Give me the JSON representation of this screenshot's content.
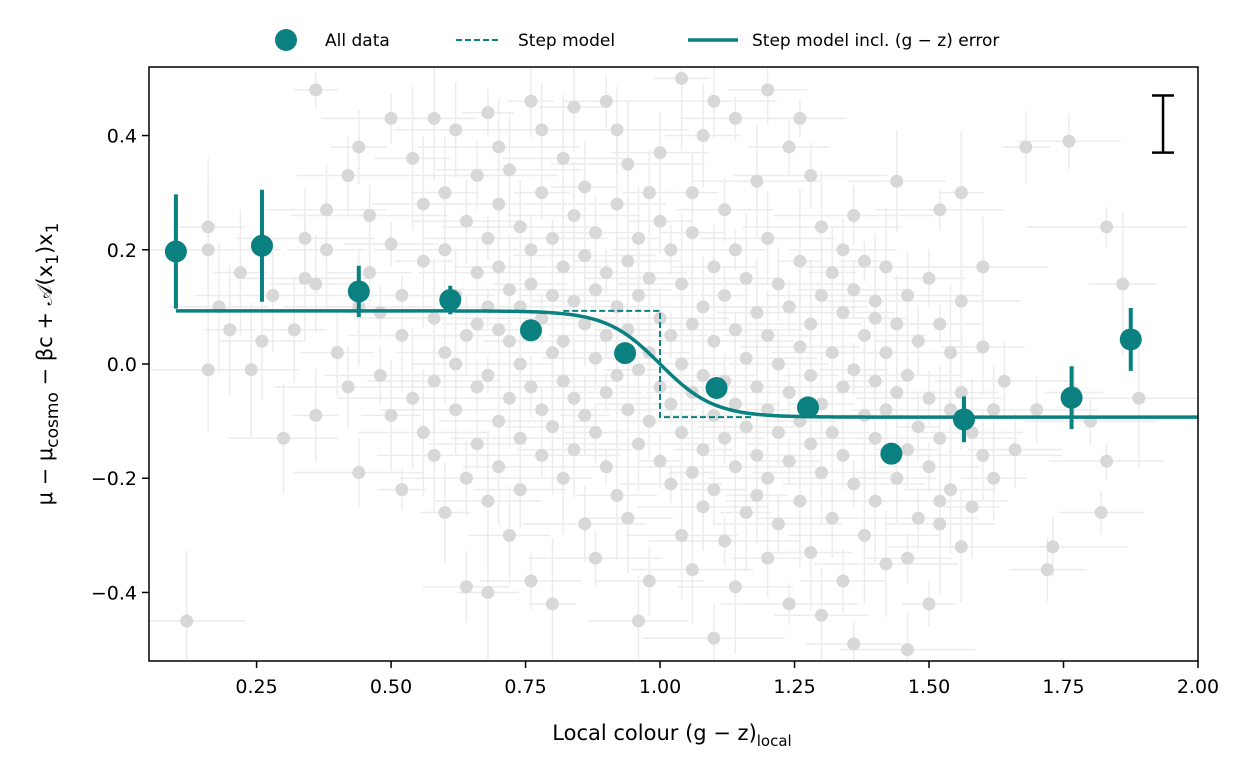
{
  "chart_data": {
    "type": "scatter",
    "xlabel": "Local colour (g − z)",
    "xlabel_sub": "local",
    "ylabel_parts": [
      "μ − μ",
      "cosmo",
      " − βc + 𝒜(x",
      "1",
      ")x",
      "1"
    ],
    "xlim": [
      0.05,
      2.0
    ],
    "ylim": [
      -0.52,
      0.52
    ],
    "x_ticks": [
      0.25,
      0.5,
      0.75,
      1.0,
      1.25,
      1.5,
      1.75,
      2.0
    ],
    "x_tick_labels": [
      "0.25",
      "0.50",
      "0.75",
      "1.00",
      "1.25",
      "1.50",
      "1.75",
      "2.00"
    ],
    "y_ticks": [
      -0.4,
      -0.2,
      0.0,
      0.2,
      0.4
    ],
    "y_tick_labels": [
      "−0.4",
      "−0.2",
      "0.0",
      "0.2",
      "0.4"
    ],
    "grid": false,
    "legend": {
      "placement": "top-center, outside above plot",
      "entries": [
        {
          "label": "All data",
          "marker": "circle"
        },
        {
          "label": "Step model",
          "marker": "dashed-line"
        },
        {
          "label": "Step model incl. (g − z) error",
          "marker": "solid-line"
        }
      ]
    },
    "colors": {
      "binned": "#0a8080",
      "scatter": "#d8d8d8",
      "scatter_error": "#ececec",
      "typical_error_bar": "#000000"
    },
    "step_model": {
      "high_level": 0.093,
      "low_level": -0.093,
      "step_location": 1.0,
      "dashed_x_range": [
        0.82,
        1.17
      ],
      "smooth_width": 0.05
    },
    "typical_error_bar": {
      "x": 1.935,
      "y_low": 0.37,
      "y_high": 0.47
    },
    "binned_points": [
      {
        "x": 0.1,
        "y": 0.197,
        "err": 0.1
      },
      {
        "x": 0.26,
        "y": 0.207,
        "err": 0.098
      },
      {
        "x": 0.44,
        "y": 0.127,
        "err": 0.045
      },
      {
        "x": 0.61,
        "y": 0.112,
        "err": 0.025
      },
      {
        "x": 0.76,
        "y": 0.059,
        "err": 0.01
      },
      {
        "x": 0.935,
        "y": 0.019,
        "err": 0.01
      },
      {
        "x": 1.105,
        "y": -0.042,
        "err": 0.01
      },
      {
        "x": 1.275,
        "y": -0.076,
        "err": 0.012
      },
      {
        "x": 1.43,
        "y": -0.157,
        "err": 0.012
      },
      {
        "x": 1.565,
        "y": -0.097,
        "err": 0.04
      },
      {
        "x": 1.765,
        "y": -0.059,
        "err": 0.055
      },
      {
        "x": 1.875,
        "y": 0.043,
        "err": 0.055
      }
    ],
    "scatter_points": [
      [
        0.36,
        0.48
      ],
      [
        0.12,
        -0.45
      ],
      [
        0.16,
        0.24
      ],
      [
        0.16,
        0.2
      ],
      [
        0.18,
        0.1
      ],
      [
        0.22,
        0.16
      ],
      [
        0.16,
        -0.01
      ],
      [
        0.26,
        0.04
      ],
      [
        0.28,
        0.12
      ],
      [
        0.3,
        -0.13
      ],
      [
        0.32,
        0.06
      ],
      [
        0.34,
        0.22
      ],
      [
        0.36,
        0.14
      ],
      [
        0.36,
        -0.09
      ],
      [
        0.38,
        0.27
      ],
      [
        0.4,
        0.02
      ],
      [
        0.42,
        -0.04
      ],
      [
        0.42,
        0.33
      ],
      [
        0.44,
        0.38
      ],
      [
        0.44,
        -0.19
      ],
      [
        0.46,
        0.16
      ],
      [
        0.46,
        0.26
      ],
      [
        0.48,
        -0.02
      ],
      [
        0.48,
        0.09
      ],
      [
        0.5,
        0.43
      ],
      [
        0.5,
        0.21
      ],
      [
        0.52,
        -0.22
      ],
      [
        0.52,
        0.12
      ],
      [
        0.54,
        0.36
      ],
      [
        0.54,
        -0.06
      ],
      [
        0.56,
        0.28
      ],
      [
        0.56,
        0.18
      ],
      [
        0.56,
        -0.12
      ],
      [
        0.58,
        0.43
      ],
      [
        0.58,
        0.08
      ],
      [
        0.58,
        -0.16
      ],
      [
        0.6,
        0.3
      ],
      [
        0.6,
        0.2
      ],
      [
        0.6,
        0.02
      ],
      [
        0.6,
        -0.26
      ],
      [
        0.62,
        0.41
      ],
      [
        0.62,
        0.12
      ],
      [
        0.62,
        -0.08
      ],
      [
        0.64,
        0.25
      ],
      [
        0.64,
        0.05
      ],
      [
        0.64,
        -0.2
      ],
      [
        0.64,
        -0.39
      ],
      [
        0.66,
        0.33
      ],
      [
        0.66,
        0.16
      ],
      [
        0.66,
        0.07
      ],
      [
        0.66,
        -0.04
      ],
      [
        0.66,
        -0.14
      ],
      [
        0.68,
        0.44
      ],
      [
        0.68,
        0.22
      ],
      [
        0.68,
        0.1
      ],
      [
        0.68,
        -0.02
      ],
      [
        0.68,
        -0.24
      ],
      [
        0.68,
        -0.4
      ],
      [
        0.7,
        0.28
      ],
      [
        0.7,
        0.17
      ],
      [
        0.7,
        0.06
      ],
      [
        0.7,
        -0.1
      ],
      [
        0.7,
        -0.18
      ],
      [
        0.72,
        0.34
      ],
      [
        0.72,
        0.13
      ],
      [
        0.72,
        0.04
      ],
      [
        0.72,
        -0.06
      ],
      [
        0.72,
        -0.3
      ],
      [
        0.74,
        0.24
      ],
      [
        0.74,
        0.1
      ],
      [
        0.74,
        0.0
      ],
      [
        0.74,
        -0.13
      ],
      [
        0.74,
        -0.22
      ],
      [
        0.76,
        0.46
      ],
      [
        0.76,
        0.2
      ],
      [
        0.76,
        0.14
      ],
      [
        0.76,
        -0.04
      ],
      [
        0.76,
        -0.38
      ],
      [
        0.78,
        0.3
      ],
      [
        0.78,
        0.08
      ],
      [
        0.78,
        -0.08
      ],
      [
        0.78,
        -0.16
      ],
      [
        0.8,
        0.22
      ],
      [
        0.8,
        0.12
      ],
      [
        0.8,
        0.02
      ],
      [
        0.8,
        -0.11
      ],
      [
        0.8,
        -0.42
      ],
      [
        0.82,
        0.36
      ],
      [
        0.82,
        0.17
      ],
      [
        0.82,
        0.04
      ],
      [
        0.82,
        -0.03
      ],
      [
        0.82,
        -0.2
      ],
      [
        0.84,
        0.26
      ],
      [
        0.84,
        0.11
      ],
      [
        0.84,
        -0.06
      ],
      [
        0.84,
        -0.15
      ],
      [
        0.86,
        0.31
      ],
      [
        0.86,
        0.19
      ],
      [
        0.86,
        0.07
      ],
      [
        0.86,
        -0.09
      ],
      [
        0.86,
        -0.28
      ],
      [
        0.88,
        0.23
      ],
      [
        0.88,
        0.13
      ],
      [
        0.88,
        0.01
      ],
      [
        0.88,
        -0.12
      ],
      [
        0.88,
        -0.34
      ],
      [
        0.9,
        0.46
      ],
      [
        0.9,
        0.16
      ],
      [
        0.9,
        0.05
      ],
      [
        0.9,
        -0.05
      ],
      [
        0.9,
        -0.18
      ],
      [
        0.92,
        0.28
      ],
      [
        0.92,
        0.1
      ],
      [
        0.92,
        -0.02
      ],
      [
        0.92,
        -0.23
      ],
      [
        0.94,
        0.35
      ],
      [
        0.94,
        0.18
      ],
      [
        0.94,
        0.06
      ],
      [
        0.94,
        -0.08
      ],
      [
        0.94,
        -0.27
      ],
      [
        0.96,
        0.22
      ],
      [
        0.96,
        0.12
      ],
      [
        0.96,
        -0.01
      ],
      [
        0.96,
        -0.14
      ],
      [
        0.96,
        -0.45
      ],
      [
        0.98,
        0.3
      ],
      [
        0.98,
        0.15
      ],
      [
        0.98,
        0.02
      ],
      [
        0.98,
        -0.1
      ],
      [
        0.98,
        -0.38
      ],
      [
        1.0,
        0.25
      ],
      [
        1.0,
        0.08
      ],
      [
        1.0,
        -0.04
      ],
      [
        1.0,
        -0.17
      ],
      [
        1.02,
        0.2
      ],
      [
        1.02,
        0.05
      ],
      [
        1.02,
        -0.07
      ],
      [
        1.02,
        -0.21
      ],
      [
        1.04,
        0.5
      ],
      [
        1.04,
        0.14
      ],
      [
        1.04,
        0.0
      ],
      [
        1.04,
        -0.12
      ],
      [
        1.04,
        -0.3
      ],
      [
        1.06,
        0.23
      ],
      [
        1.06,
        0.07
      ],
      [
        1.06,
        -0.05
      ],
      [
        1.06,
        -0.19
      ],
      [
        1.06,
        -0.36
      ],
      [
        1.08,
        0.4
      ],
      [
        1.08,
        0.1
      ],
      [
        1.08,
        -0.02
      ],
      [
        1.08,
        -0.15
      ],
      [
        1.08,
        -0.25
      ],
      [
        1.1,
        0.17
      ],
      [
        1.1,
        0.04
      ],
      [
        1.1,
        -0.09
      ],
      [
        1.1,
        -0.22
      ],
      [
        1.1,
        -0.48
      ],
      [
        1.12,
        0.27
      ],
      [
        1.12,
        0.12
      ],
      [
        1.12,
        -0.03
      ],
      [
        1.12,
        -0.13
      ],
      [
        1.12,
        -0.31
      ],
      [
        1.14,
        0.43
      ],
      [
        1.14,
        0.2
      ],
      [
        1.14,
        0.06
      ],
      [
        1.14,
        -0.07
      ],
      [
        1.14,
        -0.18
      ],
      [
        1.14,
        -0.39
      ],
      [
        1.16,
        0.15
      ],
      [
        1.16,
        0.01
      ],
      [
        1.16,
        -0.11
      ],
      [
        1.16,
        -0.26
      ],
      [
        1.18,
        0.32
      ],
      [
        1.18,
        0.09
      ],
      [
        1.18,
        -0.04
      ],
      [
        1.18,
        -0.16
      ],
      [
        1.18,
        -0.23
      ],
      [
        1.2,
        0.22
      ],
      [
        1.2,
        0.05
      ],
      [
        1.2,
        -0.08
      ],
      [
        1.2,
        -0.2
      ],
      [
        1.2,
        -0.34
      ],
      [
        1.22,
        0.14
      ],
      [
        1.22,
        0.0
      ],
      [
        1.22,
        -0.12
      ],
      [
        1.22,
        -0.28
      ],
      [
        1.24,
        0.38
      ],
      [
        1.24,
        0.1
      ],
      [
        1.24,
        -0.05
      ],
      [
        1.24,
        -0.17
      ],
      [
        1.24,
        -0.42
      ],
      [
        1.26,
        0.43
      ],
      [
        1.26,
        0.18
      ],
      [
        1.26,
        0.03
      ],
      [
        1.26,
        -0.1
      ],
      [
        1.26,
        -0.24
      ],
      [
        1.28,
        0.07
      ],
      [
        1.28,
        -0.02
      ],
      [
        1.28,
        -0.14
      ],
      [
        1.28,
        -0.33
      ],
      [
        1.3,
        0.24
      ],
      [
        1.3,
        0.12
      ],
      [
        1.3,
        -0.07
      ],
      [
        1.3,
        -0.19
      ],
      [
        1.3,
        -0.44
      ],
      [
        1.32,
        0.16
      ],
      [
        1.32,
        0.02
      ],
      [
        1.32,
        -0.12
      ],
      [
        1.32,
        -0.27
      ],
      [
        1.34,
        0.09
      ],
      [
        1.34,
        -0.04
      ],
      [
        1.34,
        -0.16
      ],
      [
        1.34,
        -0.38
      ],
      [
        1.36,
        0.26
      ],
      [
        1.36,
        0.13
      ],
      [
        1.36,
        -0.01
      ],
      [
        1.36,
        -0.21
      ],
      [
        1.36,
        -0.49
      ],
      [
        1.38,
        0.18
      ],
      [
        1.38,
        0.05
      ],
      [
        1.38,
        -0.09
      ],
      [
        1.38,
        -0.3
      ],
      [
        1.4,
        0.11
      ],
      [
        1.4,
        -0.03
      ],
      [
        1.4,
        -0.13
      ],
      [
        1.4,
        -0.24
      ],
      [
        1.42,
        0.17
      ],
      [
        1.42,
        0.02
      ],
      [
        1.42,
        -0.08
      ],
      [
        1.42,
        -0.35
      ],
      [
        1.44,
        0.32
      ],
      [
        1.44,
        0.07
      ],
      [
        1.44,
        -0.05
      ],
      [
        1.44,
        -0.2
      ],
      [
        1.46,
        0.12
      ],
      [
        1.46,
        -0.02
      ],
      [
        1.46,
        -0.15
      ],
      [
        1.46,
        -0.5
      ],
      [
        1.48,
        0.04
      ],
      [
        1.48,
        -0.11
      ],
      [
        1.48,
        -0.27
      ],
      [
        1.5,
        0.15
      ],
      [
        1.5,
        -0.06
      ],
      [
        1.5,
        -0.18
      ],
      [
        1.5,
        -0.42
      ],
      [
        1.52,
        0.27
      ],
      [
        1.52,
        0.07
      ],
      [
        1.52,
        -0.13
      ],
      [
        1.52,
        -0.28
      ],
      [
        1.54,
        0.02
      ],
      [
        1.54,
        -0.08
      ],
      [
        1.54,
        -0.22
      ],
      [
        1.56,
        0.3
      ],
      [
        1.56,
        0.11
      ],
      [
        1.56,
        -0.05
      ],
      [
        1.56,
        -0.32
      ],
      [
        1.58,
        -0.12
      ],
      [
        1.58,
        -0.25
      ],
      [
        1.6,
        0.17
      ],
      [
        1.6,
        0.03
      ],
      [
        1.6,
        -0.16
      ],
      [
        1.62,
        -0.08
      ],
      [
        1.62,
        -0.2
      ],
      [
        1.64,
        -0.03
      ],
      [
        1.66,
        -0.15
      ],
      [
        1.68,
        0.38
      ],
      [
        1.7,
        -0.08
      ],
      [
        1.72,
        -0.36
      ],
      [
        1.73,
        -0.32
      ],
      [
        1.76,
        0.39
      ],
      [
        1.77,
        -0.05
      ],
      [
        1.8,
        -0.1
      ],
      [
        1.82,
        -0.26
      ],
      [
        1.83,
        0.24
      ],
      [
        1.83,
        -0.17
      ],
      [
        1.86,
        0.14
      ],
      [
        1.89,
        -0.06
      ],
      [
        0.24,
        -0.01
      ],
      [
        0.2,
        0.06
      ],
      [
        0.34,
        0.15
      ],
      [
        0.38,
        0.2
      ],
      [
        0.44,
        0.1
      ],
      [
        0.52,
        0.05
      ],
      [
        0.5,
        -0.09
      ],
      [
        0.58,
        -0.03
      ],
      [
        0.62,
        0.0
      ],
      [
        0.7,
        0.38
      ],
      [
        0.78,
        0.41
      ],
      [
        0.84,
        0.45
      ],
      [
        0.92,
        0.41
      ],
      [
        1.0,
        0.37
      ],
      [
        1.06,
        0.3
      ],
      [
        1.1,
        0.46
      ],
      [
        1.2,
        0.48
      ],
      [
        1.28,
        0.33
      ],
      [
        1.34,
        0.2
      ],
      [
        1.4,
        0.08
      ],
      [
        1.52,
        -0.24
      ],
      [
        1.46,
        -0.34
      ]
    ]
  }
}
